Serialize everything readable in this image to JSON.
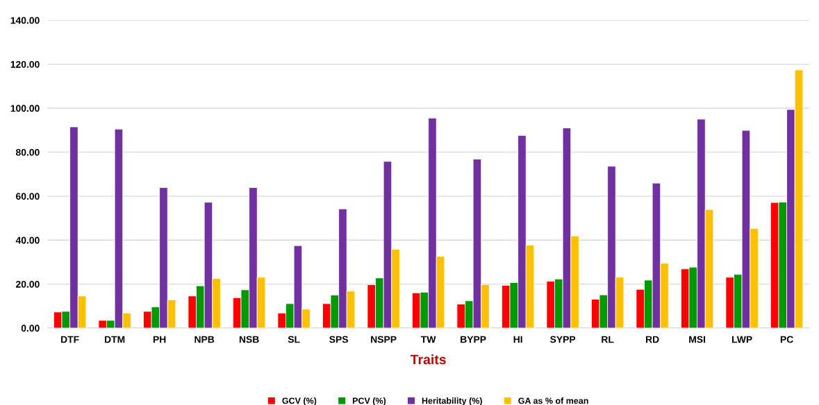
{
  "chart_data": {
    "type": "bar",
    "xlabel": "Traits",
    "categories": [
      "DTF",
      "DTM",
      "PH",
      "NPB",
      "NSB",
      "SL",
      "SPS",
      "NSPP",
      "TW",
      "BYPP",
      "HI",
      "SYPP",
      "RL",
      "RD",
      "MSI",
      "LWP",
      "PC"
    ],
    "series": [
      {
        "name": "GCV (%)",
        "color": "#ff0000",
        "values": [
          7.3,
          3.5,
          7.6,
          14.6,
          13.8,
          6.8,
          11.1,
          19.7,
          16.0,
          10.9,
          19.4,
          21.3,
          13.1,
          17.6,
          26.9,
          23.1,
          57.1
        ]
      },
      {
        "name": "PCV (%)",
        "color": "#009900",
        "values": [
          7.6,
          3.5,
          9.6,
          19.2,
          17.4,
          11.1,
          15.0,
          22.8,
          16.3,
          12.4,
          20.7,
          22.3,
          15.1,
          21.8,
          27.7,
          24.4,
          57.3
        ]
      },
      {
        "name": "Heritability (%)",
        "color": "#7030a0",
        "values": [
          91.5,
          90.5,
          63.9,
          57.2,
          63.9,
          37.5,
          54.2,
          75.8,
          95.5,
          76.8,
          87.6,
          91.0,
          73.6,
          65.9,
          95.0,
          89.9,
          99.4
        ]
      },
      {
        "name": "GA as % of mean",
        "color": "#ffc000",
        "values": [
          14.6,
          6.8,
          12.8,
          22.5,
          23.1,
          8.6,
          16.8,
          35.8,
          32.6,
          19.8,
          37.7,
          41.9,
          23.1,
          29.5,
          53.9,
          45.3,
          117.4
        ]
      }
    ],
    "ylim": [
      0,
      140
    ],
    "yticks": [
      {
        "value": 0,
        "label": "0.00"
      },
      {
        "value": 20,
        "label": "20.00"
      },
      {
        "value": 40,
        "label": "40.00"
      },
      {
        "value": 60,
        "label": "60.00"
      },
      {
        "value": 80,
        "label": "80.00"
      },
      {
        "value": 100,
        "label": "100.00"
      },
      {
        "value": 120,
        "label": "120.00"
      },
      {
        "value": 140,
        "label": "140.00"
      }
    ],
    "grid": "y",
    "legend": "bottom"
  }
}
